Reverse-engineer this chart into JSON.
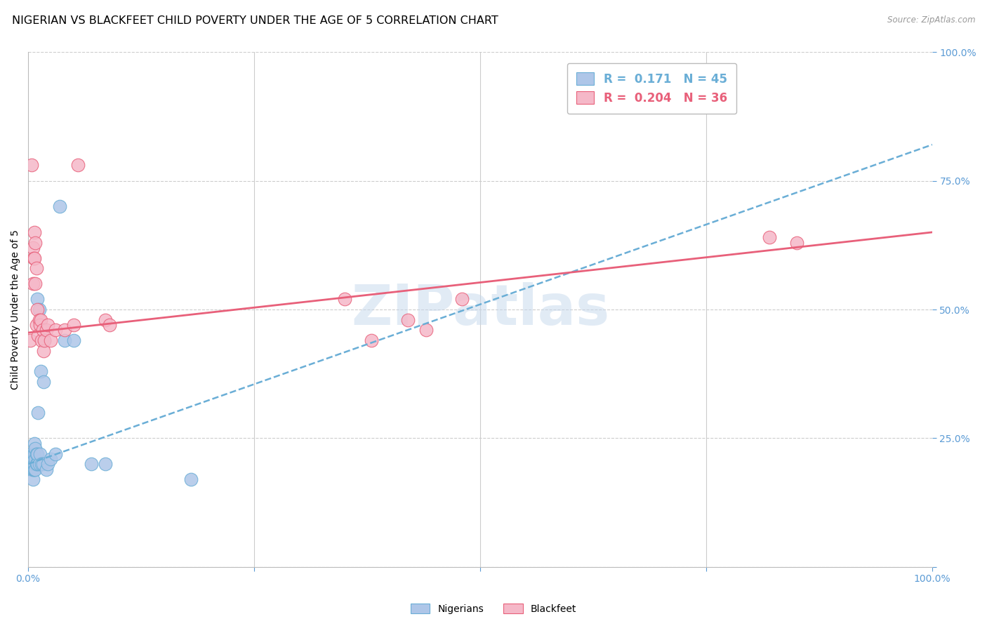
{
  "title": "NIGERIAN VS BLACKFEET CHILD POVERTY UNDER THE AGE OF 5 CORRELATION CHART",
  "source": "Source: ZipAtlas.com",
  "ylabel": "Child Poverty Under the Age of 5",
  "xlim": [
    0,
    1
  ],
  "ylim": [
    0,
    1
  ],
  "x_ticks": [
    0,
    0.25,
    0.5,
    0.75,
    1.0
  ],
  "y_ticks": [
    0,
    0.25,
    0.5,
    0.75,
    1.0
  ],
  "x_tick_labels": [
    "0.0%",
    "",
    "",
    "",
    "100.0%"
  ],
  "y_tick_labels": [
    "",
    "25.0%",
    "50.0%",
    "75.0%",
    "100.0%"
  ],
  "watermark": "ZIPatlas",
  "nigerians_color": "#aec6e8",
  "blackfeet_color": "#f5b8c8",
  "trend_nigerian_color": "#6aaed6",
  "trend_blackfeet_color": "#e8607a",
  "nigerian_x": [
    0.002,
    0.003,
    0.003,
    0.004,
    0.004,
    0.004,
    0.005,
    0.005,
    0.005,
    0.005,
    0.006,
    0.006,
    0.006,
    0.006,
    0.007,
    0.007,
    0.007,
    0.007,
    0.008,
    0.008,
    0.008,
    0.009,
    0.009,
    0.01,
    0.01,
    0.01,
    0.011,
    0.012,
    0.012,
    0.013,
    0.014,
    0.015,
    0.016,
    0.017,
    0.018,
    0.02,
    0.022,
    0.025,
    0.03,
    0.035,
    0.04,
    0.05,
    0.07,
    0.085,
    0.18
  ],
  "nigerian_y": [
    0.21,
    0.2,
    0.22,
    0.19,
    0.2,
    0.21,
    0.17,
    0.19,
    0.2,
    0.21,
    0.19,
    0.2,
    0.21,
    0.22,
    0.19,
    0.2,
    0.22,
    0.24,
    0.19,
    0.21,
    0.23,
    0.2,
    0.22,
    0.2,
    0.22,
    0.52,
    0.3,
    0.2,
    0.5,
    0.22,
    0.38,
    0.2,
    0.2,
    0.36,
    0.44,
    0.19,
    0.2,
    0.21,
    0.22,
    0.7,
    0.44,
    0.44,
    0.2,
    0.2,
    0.17
  ],
  "blackfeet_x": [
    0.002,
    0.004,
    0.005,
    0.005,
    0.006,
    0.007,
    0.007,
    0.008,
    0.008,
    0.009,
    0.009,
    0.01,
    0.011,
    0.012,
    0.013,
    0.014,
    0.015,
    0.016,
    0.017,
    0.018,
    0.02,
    0.022,
    0.025,
    0.03,
    0.04,
    0.05,
    0.055,
    0.085,
    0.09,
    0.35,
    0.38,
    0.42,
    0.44,
    0.48,
    0.82,
    0.85
  ],
  "blackfeet_y": [
    0.44,
    0.78,
    0.55,
    0.62,
    0.6,
    0.6,
    0.65,
    0.55,
    0.63,
    0.47,
    0.58,
    0.5,
    0.45,
    0.48,
    0.47,
    0.48,
    0.44,
    0.46,
    0.42,
    0.44,
    0.46,
    0.47,
    0.44,
    0.46,
    0.46,
    0.47,
    0.78,
    0.48,
    0.47,
    0.52,
    0.44,
    0.48,
    0.46,
    0.52,
    0.64,
    0.63
  ],
  "background_color": "#ffffff",
  "grid_color": "#cccccc",
  "title_fontsize": 11.5,
  "axis_label_fontsize": 10,
  "tick_label_fontsize": 10,
  "tick_color": "#5b9bd5"
}
